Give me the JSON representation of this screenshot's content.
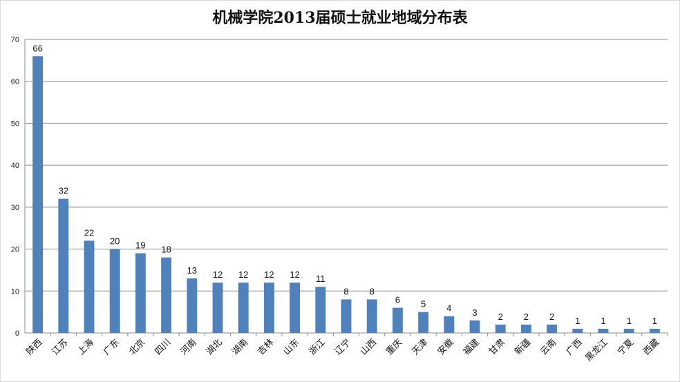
{
  "chart_data": {
    "type": "bar",
    "title": "机械学院2013届硕士就业地域分布表",
    "categories": [
      "陕西",
      "江苏",
      "上海",
      "广东",
      "北京",
      "四川",
      "河南",
      "湖北",
      "湖南",
      "吉林",
      "山东",
      "浙江",
      "辽宁",
      "山西",
      "重庆",
      "天津",
      "安徽",
      "福建",
      "甘肃",
      "新疆",
      "云南",
      "广西",
      "黑龙江",
      "宁夏",
      "西藏"
    ],
    "values": [
      66,
      32,
      22,
      20,
      19,
      18,
      13,
      12,
      12,
      12,
      12,
      11,
      8,
      8,
      6,
      5,
      4,
      3,
      2,
      2,
      2,
      1,
      1,
      1,
      1
    ],
    "ylim": [
      0,
      70
    ],
    "yticks": [
      0,
      10,
      20,
      30,
      40,
      50,
      60,
      70
    ],
    "grid": true,
    "legend": "none",
    "bar_color": "#4f81bd",
    "gridline_color": "#8c8c8c"
  }
}
